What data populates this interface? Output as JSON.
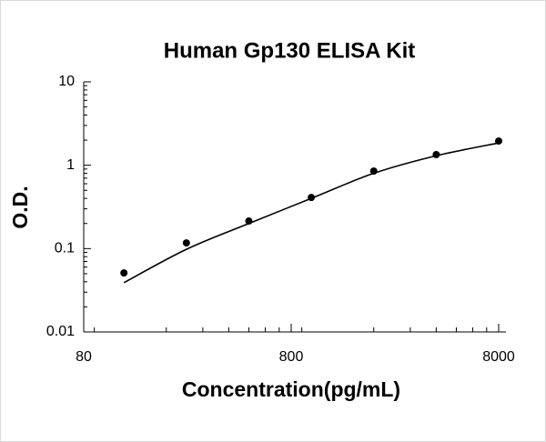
{
  "chart_data": {
    "type": "scatter",
    "title": "Human Gp130 ELISA Kit",
    "x_label": "Concentration(pg/mL)",
    "y_label": "O.D.",
    "log_x": true,
    "log_y": true,
    "xlim": [
      80,
      8000
    ],
    "xticks": [
      80,
      800,
      8000
    ],
    "ylim": [
      0.01,
      10
    ],
    "yticks": [
      0.01,
      0.1,
      1,
      10
    ],
    "color": "#000000",
    "series": [
      {
        "style": "points",
        "x": [
          125,
          250,
          500,
          1000,
          2000,
          4000,
          8000
        ],
        "values": [
          0.051,
          0.117,
          0.214,
          0.41,
          0.85,
          1.34,
          1.95
        ]
      },
      {
        "style": "line",
        "x": [
          125,
          250,
          500,
          1000,
          2000,
          4000,
          8000
        ],
        "values": [
          0.039,
          0.098,
          0.2,
          0.4,
          0.8,
          1.3,
          1.85
        ]
      }
    ]
  }
}
